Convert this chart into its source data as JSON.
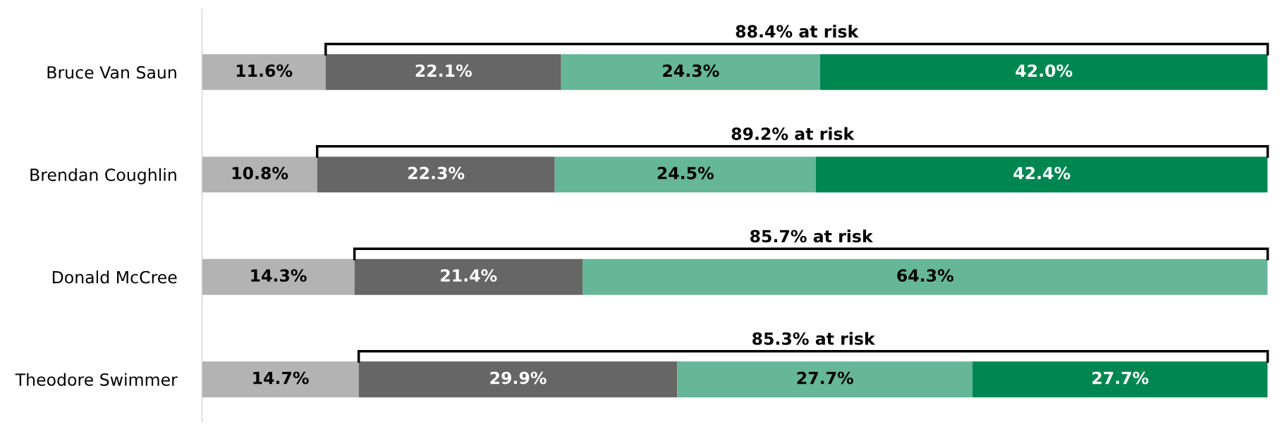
{
  "chart_data": {
    "type": "bar",
    "orientation": "horizontal",
    "stacked": true,
    "tick_labels": "y",
    "categories": [
      "Bruce Van Saun",
      "Brendan Coughlin",
      "Donald McCree",
      "Theodore Swimmer"
    ],
    "series": [
      {
        "color": "#b3b3b3",
        "values": [
          11.6,
          10.8,
          14.3,
          14.7
        ],
        "value_labels": [
          "11.6%",
          "10.8%",
          "14.3%",
          "14.7%"
        ]
      },
      {
        "color": "#666666",
        "values": [
          22.1,
          22.3,
          21.4,
          29.9
        ],
        "value_labels": [
          "22.1%",
          "22.3%",
          "21.4%",
          "29.9%"
        ]
      },
      {
        "color": "#66b699",
        "values": [
          24.3,
          24.5,
          64.3,
          27.7
        ],
        "value_labels": [
          "24.3%",
          "24.5%",
          "64.3%",
          "27.7%"
        ]
      },
      {
        "color": "#008751",
        "values": [
          42.0,
          42.4,
          null,
          27.7
        ],
        "value_labels": [
          "42.0%",
          "42.4%",
          null,
          "27.7%"
        ]
      }
    ],
    "annotations": [
      "88.4% at risk",
      "89.2% at risk",
      "85.7% at risk",
      "85.3% at risk"
    ]
  }
}
